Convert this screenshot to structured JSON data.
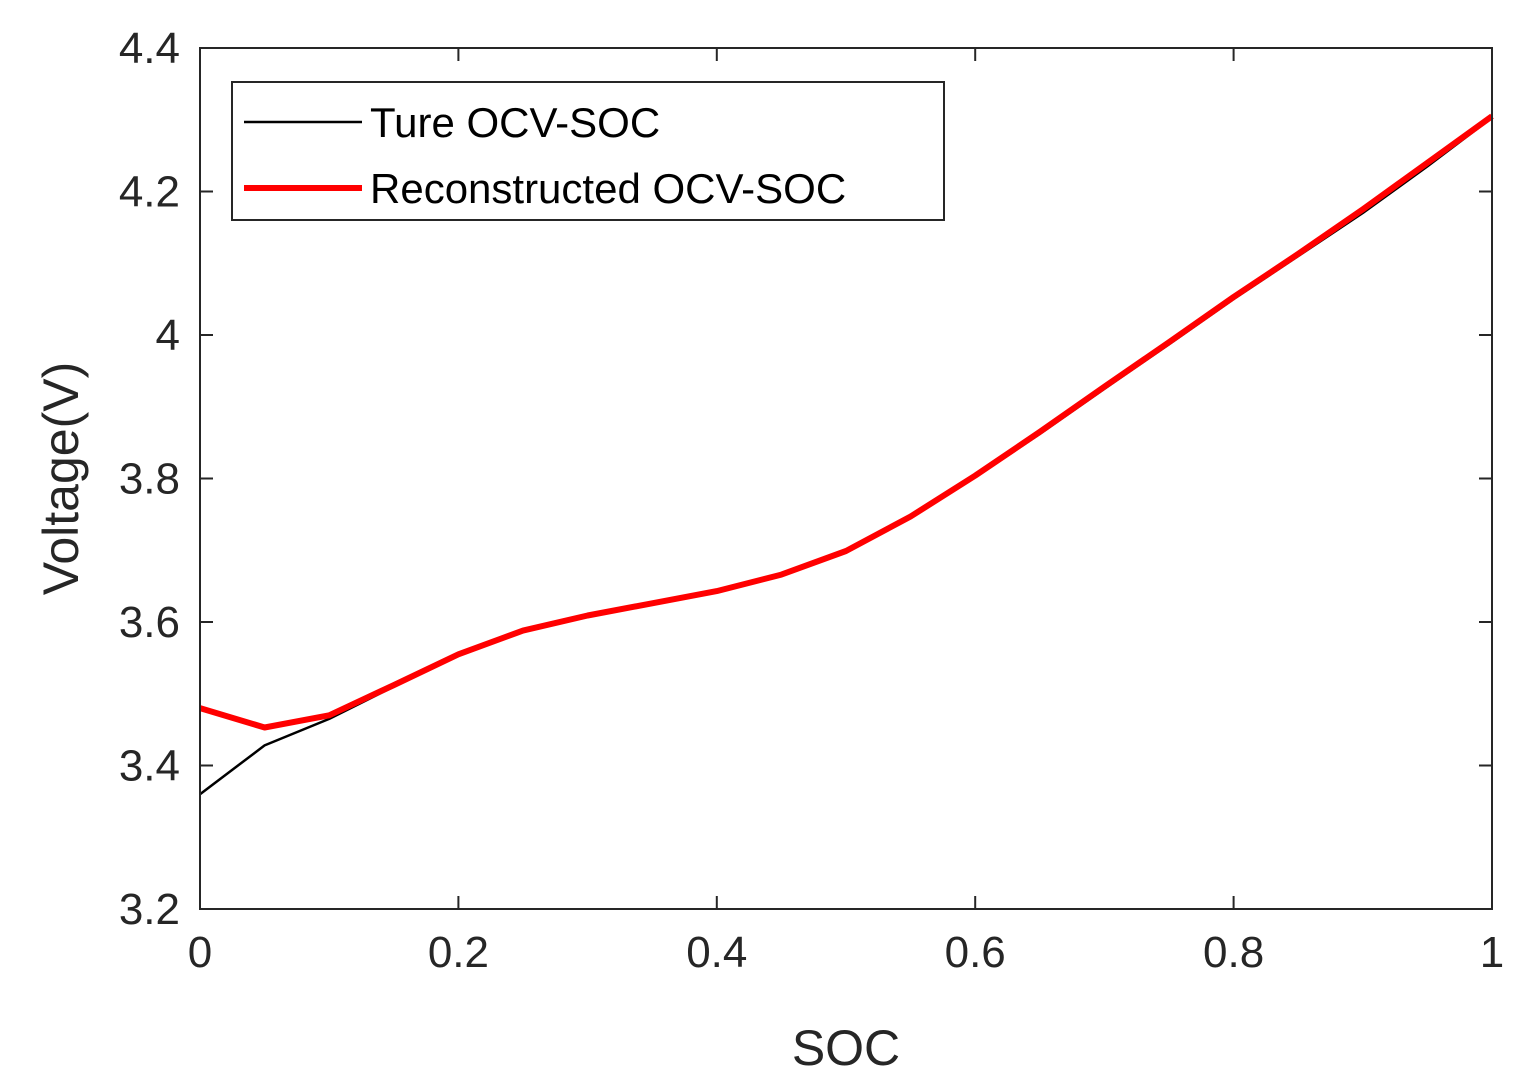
{
  "chart_data": {
    "type": "line",
    "title": "",
    "xlabel": "SOC",
    "ylabel": "Voltage(V)",
    "xlim": [
      0,
      1
    ],
    "ylim": [
      3.2,
      4.4
    ],
    "xticks": [
      0,
      0.2,
      0.4,
      0.6,
      0.8,
      1
    ],
    "xtick_labels": [
      "0",
      "0.2",
      "0.4",
      "0.6",
      "0.8",
      "1"
    ],
    "yticks": [
      3.2,
      3.4,
      3.6,
      3.8,
      4.0,
      4.2,
      4.4
    ],
    "ytick_labels": [
      "3.2",
      "3.4",
      "3.6",
      "3.8",
      "4",
      "4.2",
      "4.4"
    ],
    "grid": false,
    "legend_position": "top-left",
    "series": [
      {
        "name": "Ture OCV-SOC",
        "color": "#000000",
        "x": [
          0,
          0.05,
          0.1,
          0.15,
          0.2,
          0.25,
          0.3,
          0.35,
          0.4,
          0.45,
          0.5,
          0.55,
          0.6,
          0.65,
          0.7,
          0.75,
          0.8,
          0.85,
          0.9,
          0.95,
          1.0
        ],
        "y": [
          3.36,
          3.428,
          3.465,
          3.51,
          3.553,
          3.587,
          3.608,
          3.625,
          3.642,
          3.665,
          3.698,
          3.745,
          3.802,
          3.862,
          3.925,
          3.987,
          4.05,
          4.11,
          4.17,
          4.235,
          4.303
        ]
      },
      {
        "name": "Reconstructed OCV-SOC",
        "color": "#ff0000",
        "x": [
          0,
          0.05,
          0.1,
          0.15,
          0.2,
          0.25,
          0.3,
          0.35,
          0.4,
          0.45,
          0.5,
          0.55,
          0.6,
          0.65,
          0.7,
          0.75,
          0.8,
          0.85,
          0.9,
          0.95,
          1.0
        ],
        "y": [
          3.48,
          3.453,
          3.47,
          3.512,
          3.555,
          3.588,
          3.609,
          3.626,
          3.643,
          3.666,
          3.699,
          3.747,
          3.804,
          3.865,
          3.928,
          3.99,
          4.053,
          4.113,
          4.175,
          4.24,
          4.305
        ]
      }
    ]
  }
}
